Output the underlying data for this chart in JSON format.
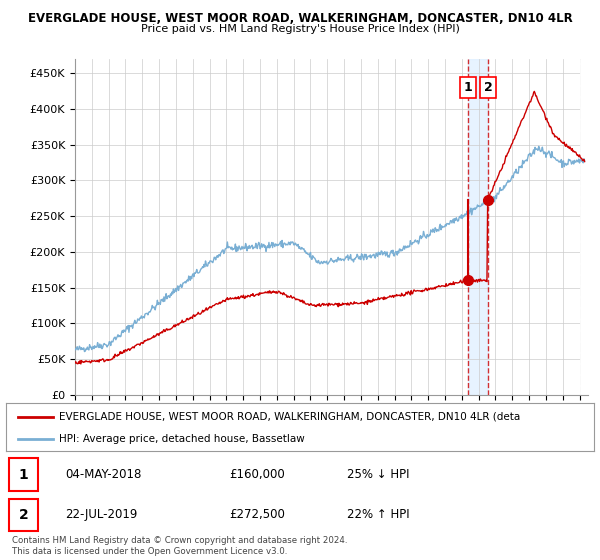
{
  "title1": "EVERGLADE HOUSE, WEST MOOR ROAD, WALKERINGHAM, DONCASTER, DN10 4LR",
  "title2": "Price paid vs. HM Land Registry's House Price Index (HPI)",
  "ylabel_ticks": [
    "£0",
    "£50K",
    "£100K",
    "£150K",
    "£200K",
    "£250K",
    "£300K",
    "£350K",
    "£400K",
    "£450K"
  ],
  "ytick_vals": [
    0,
    50000,
    100000,
    150000,
    200000,
    250000,
    300000,
    350000,
    400000,
    450000
  ],
  "ylim": [
    0,
    470000
  ],
  "xlim_start": 1995.0,
  "xlim_end": 2025.5,
  "sale1_date": 2018.35,
  "sale1_price": 160000,
  "sale1_label": "1",
  "sale2_date": 2019.55,
  "sale2_price": 272500,
  "sale2_label": "2",
  "legend_red": "EVERGLADE HOUSE, WEST MOOR ROAD, WALKERINGHAM, DONCASTER, DN10 4LR (deta",
  "legend_blue": "HPI: Average price, detached house, Bassetlaw",
  "table_row1_num": "1",
  "table_row1_date": "04-MAY-2018",
  "table_row1_price": "£160,000",
  "table_row1_hpi": "25% ↓ HPI",
  "table_row2_num": "2",
  "table_row2_date": "22-JUL-2019",
  "table_row2_price": "£272,500",
  "table_row2_hpi": "22% ↑ HPI",
  "footnote": "Contains HM Land Registry data © Crown copyright and database right 2024.\nThis data is licensed under the Open Government Licence v3.0.",
  "red_color": "#cc0000",
  "blue_color": "#7aafd4",
  "shade_color": "#ddeeff",
  "bg_color": "#ffffff",
  "grid_color": "#cccccc"
}
